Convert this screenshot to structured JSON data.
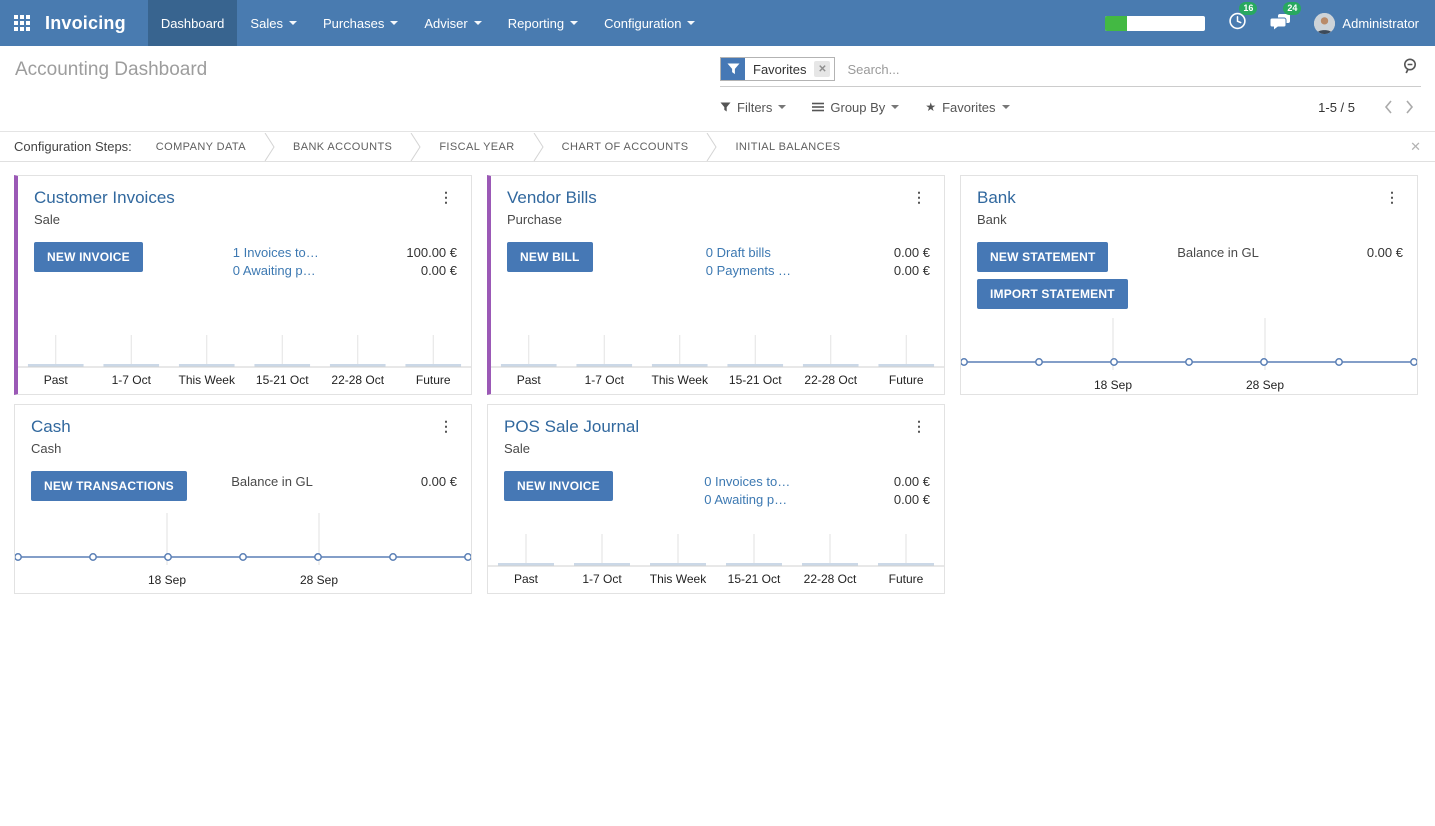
{
  "colors": {
    "navbar_bg": "#497bb0",
    "navbar_active": "#38648f",
    "accent_button": "#4678b5",
    "card_stripe": "#9b59b6",
    "badge_green": "#28a860",
    "progress_green": "#43b943",
    "card_title_blue": "#31689e",
    "link_blue": "#3d79b2",
    "chart_line_blue": "#5a7fb5"
  },
  "navbar": {
    "app_name": "Invoicing",
    "menus": [
      {
        "label": "Dashboard",
        "active": true,
        "dropdown": false
      },
      {
        "label": "Sales",
        "active": false,
        "dropdown": true
      },
      {
        "label": "Purchases",
        "active": false,
        "dropdown": true
      },
      {
        "label": "Adviser",
        "active": false,
        "dropdown": true
      },
      {
        "label": "Reporting",
        "active": false,
        "dropdown": true
      },
      {
        "label": "Configuration",
        "active": false,
        "dropdown": true
      }
    ],
    "progress_percent": 22,
    "activity_badge": "16",
    "messages_badge": "24",
    "user_name": "Administrator"
  },
  "control_panel": {
    "breadcrumb": "Accounting Dashboard",
    "search": {
      "facet_label": "Favorites",
      "placeholder": "Search..."
    },
    "buttons": {
      "filters": "Filters",
      "group_by": "Group By",
      "favorites": "Favorites"
    },
    "pager": {
      "range": "1-5 / 5"
    }
  },
  "config_steps": {
    "label": "Configuration Steps:",
    "steps": [
      "COMPANY DATA",
      "BANK ACCOUNTS",
      "FISCAL YEAR",
      "CHART OF ACCOUNTS",
      "INITIAL BALANCES"
    ]
  },
  "cards": [
    {
      "title": "Customer Invoices",
      "subtitle": "Sale",
      "stripe": true,
      "size": "tall",
      "buttons": [
        "NEW INVOICE"
      ],
      "rows": [
        {
          "label": "1 Invoices to…",
          "amount": "100.00 €",
          "link": true
        },
        {
          "label": "0 Awaiting p…",
          "amount": "0.00 €",
          "link": true
        }
      ],
      "chart": {
        "type": "bar",
        "categories": [
          "Past",
          "1-7 Oct",
          "This Week",
          "15-21 Oct",
          "22-28 Oct",
          "Future"
        ],
        "values": [
          0,
          0,
          0,
          0,
          0,
          0
        ]
      }
    },
    {
      "title": "Vendor Bills",
      "subtitle": "Purchase",
      "stripe": true,
      "size": "tall",
      "buttons": [
        "NEW BILL"
      ],
      "rows": [
        {
          "label": "0 Draft bills",
          "amount": "0.00 €",
          "link": true
        },
        {
          "label": "0 Payments …",
          "amount": "0.00 €",
          "link": true
        }
      ],
      "chart": {
        "type": "bar",
        "categories": [
          "Past",
          "1-7 Oct",
          "This Week",
          "15-21 Oct",
          "22-28 Oct",
          "Future"
        ],
        "values": [
          0,
          0,
          0,
          0,
          0,
          0
        ]
      }
    },
    {
      "title": "Bank",
      "subtitle": "Bank",
      "stripe": false,
      "size": "tall",
      "buttons": [
        "NEW STATEMENT",
        "IMPORT STATEMENT"
      ],
      "rows": [
        {
          "label": "Balance in GL",
          "amount": "0.00 €",
          "link": false
        }
      ],
      "chart": {
        "type": "line",
        "values": [
          0,
          0,
          0,
          0,
          0,
          0,
          0
        ],
        "x_labels": [
          {
            "label": "18 Sep",
            "index": 2
          },
          {
            "label": "28 Sep",
            "index": 4
          }
        ]
      }
    },
    {
      "title": "Cash",
      "subtitle": "Cash",
      "stripe": false,
      "size": "short",
      "buttons": [
        "NEW TRANSACTIONS"
      ],
      "rows": [
        {
          "label": "Balance in GL",
          "amount": "0.00 €",
          "link": false
        }
      ],
      "chart": {
        "type": "line",
        "values": [
          0,
          0,
          0,
          0,
          0,
          0,
          0
        ],
        "x_labels": [
          {
            "label": "18 Sep",
            "index": 2
          },
          {
            "label": "28 Sep",
            "index": 4
          }
        ]
      }
    },
    {
      "title": "POS Sale Journal",
      "subtitle": "Sale",
      "stripe": false,
      "size": "short",
      "buttons": [
        "NEW INVOICE"
      ],
      "rows": [
        {
          "label": "0 Invoices to…",
          "amount": "0.00 €",
          "link": true
        },
        {
          "label": "0 Awaiting p…",
          "amount": "0.00 €",
          "link": true
        }
      ],
      "chart": {
        "type": "bar",
        "categories": [
          "Past",
          "1-7 Oct",
          "This Week",
          "15-21 Oct",
          "22-28 Oct",
          "Future"
        ],
        "values": [
          0,
          0,
          0,
          0,
          0,
          0
        ]
      }
    }
  ]
}
